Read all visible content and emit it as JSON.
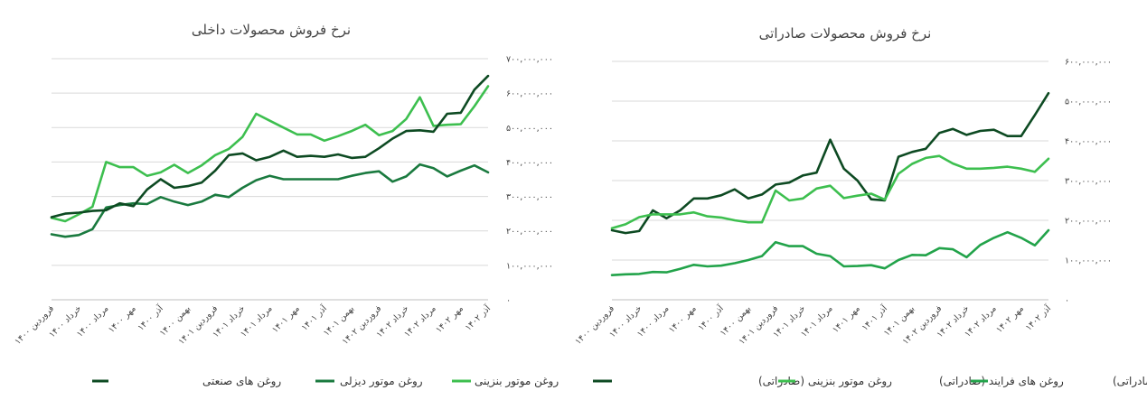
{
  "chart_data": [
    {
      "type": "line",
      "title": "نرخ فروش محصولات داخلی",
      "xlabel": "",
      "ylabel": "",
      "ylim": [
        0,
        700000000
      ],
      "y_ticks": [
        "۷۰۰,۰۰۰,۰۰۰",
        "۶۰۰,۰۰۰,۰۰۰",
        "۵۰۰,۰۰۰,۰۰۰",
        "۴۰۰,۰۰۰,۰۰۰",
        "۳۰۰,۰۰۰,۰۰۰",
        "۲۰۰,۰۰۰,۰۰۰",
        "۱۰۰,۰۰۰,۰۰۰",
        "۰"
      ],
      "x_tick_labels": [
        "فروردین ۱۴۰۰",
        "خرداد ۱۴۰۰",
        "مرداد ۱۴۰۰",
        "مهر ۱۴۰۰",
        "آذر ۱۴۰۰",
        "بهمن ۱۴۰۰",
        "فروردین ۱۴۰۱",
        "خرداد ۱۴۰۱",
        "مرداد ۱۴۰۱",
        "مهر ۱۴۰۱",
        "آذر ۱۴۰۱",
        "بهمن ۱۴۰۱",
        "فروردین ۱۴۰۲",
        "خرداد ۱۴۰۲",
        "مرداد ۱۴۰۲",
        "مهر ۱۴۰۲",
        "آذر ۱۴۰۲"
      ],
      "grid": true,
      "legend_position": "bottom",
      "series": [
        {
          "name": "روغن موتور بنزینی",
          "color": "#3dbf4f",
          "values": [
            238000000,
            228000000,
            248000000,
            270000000,
            400000000,
            385000000,
            385000000,
            360000000,
            370000000,
            392000000,
            368000000,
            390000000,
            420000000,
            438000000,
            473000000,
            540000000,
            520000000,
            500000000,
            480000000,
            480000000,
            462000000,
            475000000,
            490000000,
            508000000,
            478000000,
            490000000,
            525000000,
            588000000,
            505000000,
            508000000,
            510000000,
            562000000,
            620000000
          ]
        },
        {
          "name": "روغن موتور دیزلی",
          "color": "#1a7a3f",
          "values": [
            190000000,
            183000000,
            188000000,
            205000000,
            268000000,
            275000000,
            280000000,
            278000000,
            298000000,
            285000000,
            275000000,
            285000000,
            305000000,
            298000000,
            325000000,
            347000000,
            360000000,
            350000000,
            350000000,
            350000000,
            350000000,
            350000000,
            360000000,
            368000000,
            373000000,
            343000000,
            358000000,
            393000000,
            382000000,
            358000000,
            375000000,
            390000000,
            370000000
          ]
        },
        {
          "name": "روغن های صنعتی",
          "color": "#0d4a22",
          "values": [
            240000000,
            250000000,
            253000000,
            258000000,
            260000000,
            280000000,
            272000000,
            320000000,
            350000000,
            325000000,
            330000000,
            340000000,
            375000000,
            420000000,
            425000000,
            405000000,
            415000000,
            433000000,
            415000000,
            418000000,
            415000000,
            422000000,
            412000000,
            415000000,
            440000000,
            468000000,
            490000000,
            492000000,
            488000000,
            540000000,
            543000000,
            610000000,
            650000000
          ]
        }
      ]
    },
    {
      "type": "line",
      "title": "نرخ فروش محصولات صادراتی",
      "xlabel": "",
      "ylabel": "",
      "ylim": [
        0,
        600000000
      ],
      "y_ticks": [
        "۶۰۰,۰۰۰,۰۰۰",
        "۵۰۰,۰۰۰,۰۰۰",
        "۴۰۰,۰۰۰,۰۰۰",
        "۳۰۰,۰۰۰,۰۰۰",
        "۲۰۰,۰۰۰,۰۰۰",
        "۱۰۰,۰۰۰,۰۰۰",
        "۰"
      ],
      "x_tick_labels": [
        "فروردین ۱۴۰۰",
        "خرداد ۱۴۰۰",
        "مرداد ۱۴۰۰",
        "مهر ۱۴۰۰",
        "آذر ۱۴۰۰",
        "بهمن ۱۴۰۰",
        "فروردین ۱۴۰۱",
        "خرداد ۱۴۰۱",
        "مرداد ۱۴۰۱",
        "مهر ۱۴۰۱",
        "آذر ۱۴۰۱",
        "بهمن ۱۴۰۱",
        "فروردین ۱۴۰۲",
        "خرداد ۱۴۰۲",
        "مرداد ۱۴۰۲",
        "مهر ۱۴۰۲",
        "آذر ۱۴۰۲"
      ],
      "grid": true,
      "legend_position": "bottom",
      "series": [
        {
          "name": "روغن موتور بنزینی (صادراتی)",
          "color": "#0d4a22",
          "values": [
            175000000,
            168000000,
            173000000,
            225000000,
            205000000,
            225000000,
            255000000,
            255000000,
            263000000,
            278000000,
            255000000,
            265000000,
            290000000,
            295000000,
            313000000,
            320000000,
            403000000,
            330000000,
            300000000,
            253000000,
            250000000,
            360000000,
            372000000,
            380000000,
            420000000,
            430000000,
            415000000,
            425000000,
            428000000,
            412000000,
            412000000,
            465000000,
            520000000
          ]
        },
        {
          "name": "روغن های فرایند (صادراتی)",
          "color": "#3dbf4f",
          "values": [
            180000000,
            190000000,
            208000000,
            215000000,
            215000000,
            215000000,
            220000000,
            210000000,
            207000000,
            200000000,
            195000000,
            195000000,
            275000000,
            250000000,
            255000000,
            280000000,
            287000000,
            256000000,
            262000000,
            267000000,
            252000000,
            317000000,
            342000000,
            357000000,
            362000000,
            343000000,
            330000000,
            330000000,
            332000000,
            335000000,
            330000000,
            322000000,
            355000000
          ]
        },
        {
          "name": "روغن پایه (صادراتی)",
          "color": "#22a34a",
          "values": [
            62000000,
            64000000,
            65000000,
            70000000,
            69000000,
            78000000,
            88000000,
            84000000,
            86000000,
            92000000,
            100000000,
            110000000,
            145000000,
            135000000,
            135000000,
            116000000,
            110000000,
            84000000,
            85000000,
            87000000,
            79000000,
            100000000,
            113000000,
            112000000,
            130000000,
            127000000,
            107000000,
            138000000,
            156000000,
            170000000,
            156000000,
            137000000,
            175000000
          ]
        }
      ]
    }
  ]
}
